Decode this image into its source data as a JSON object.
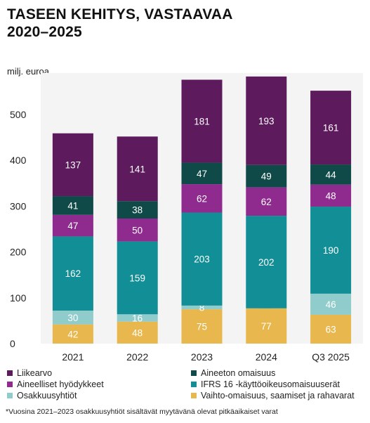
{
  "header": {
    "title_line1": "TASEEN KEHITYS, VASTAAVAA",
    "title_line2": "2020–2025",
    "unit": "milj. euroa"
  },
  "chart_data": {
    "type": "bar",
    "stacked": true,
    "categories": [
      "2021",
      "2022",
      "2023",
      "2024",
      "Q3 2025"
    ],
    "ylim": [
      0,
      600
    ],
    "yticks": [
      0,
      100,
      200,
      300,
      400,
      500
    ],
    "grid": false,
    "legend_position": "bottom",
    "series": [
      {
        "name": "Vaihto-omaisuus, saamiset ja rahavarat",
        "color": "#E8B84E",
        "values": [
          42,
          48,
          75,
          77,
          63
        ]
      },
      {
        "name": "Osakkuusyhtiöt",
        "color": "#8FCCCB",
        "values": [
          30,
          16,
          8,
          0,
          46
        ]
      },
      {
        "name": "IFRS 16 -käyttöoikeusomaisuuserät",
        "color": "#128E96",
        "values": [
          162,
          159,
          203,
          202,
          190
        ]
      },
      {
        "name": "Aineelliset hyödykkeet",
        "color": "#8F2A8E",
        "values": [
          47,
          50,
          62,
          62,
          48
        ]
      },
      {
        "name": "Aineeton omaisuus",
        "color": "#0F4A49",
        "values": [
          41,
          38,
          47,
          49,
          44
        ]
      },
      {
        "name": "Liikearvo",
        "color": "#5D1A5D",
        "values": [
          137,
          141,
          181,
          193,
          161
        ]
      }
    ]
  },
  "legend": {
    "items": [
      {
        "label": "Liikearvo",
        "color": "#5D1A5D"
      },
      {
        "label": "Aineeton omaisuus",
        "color": "#0F4A49"
      },
      {
        "label": "Aineelliset hyödykkeet",
        "color": "#8F2A8E"
      },
      {
        "label": "IFRS 16 -käyttöoikeusomaisuuserät",
        "color": "#128E96"
      },
      {
        "label": "Osakkuusyhtiöt",
        "color": "#8FCCCB"
      },
      {
        "label": "Vaihto-omaisuus, saamiset ja rahavarat",
        "color": "#E8B84E"
      }
    ]
  },
  "footnote": "*Vuosina 2021–2023 osakkuusyhtiöt sisältävät myytävänä olevat pitkäaikaiset varat"
}
